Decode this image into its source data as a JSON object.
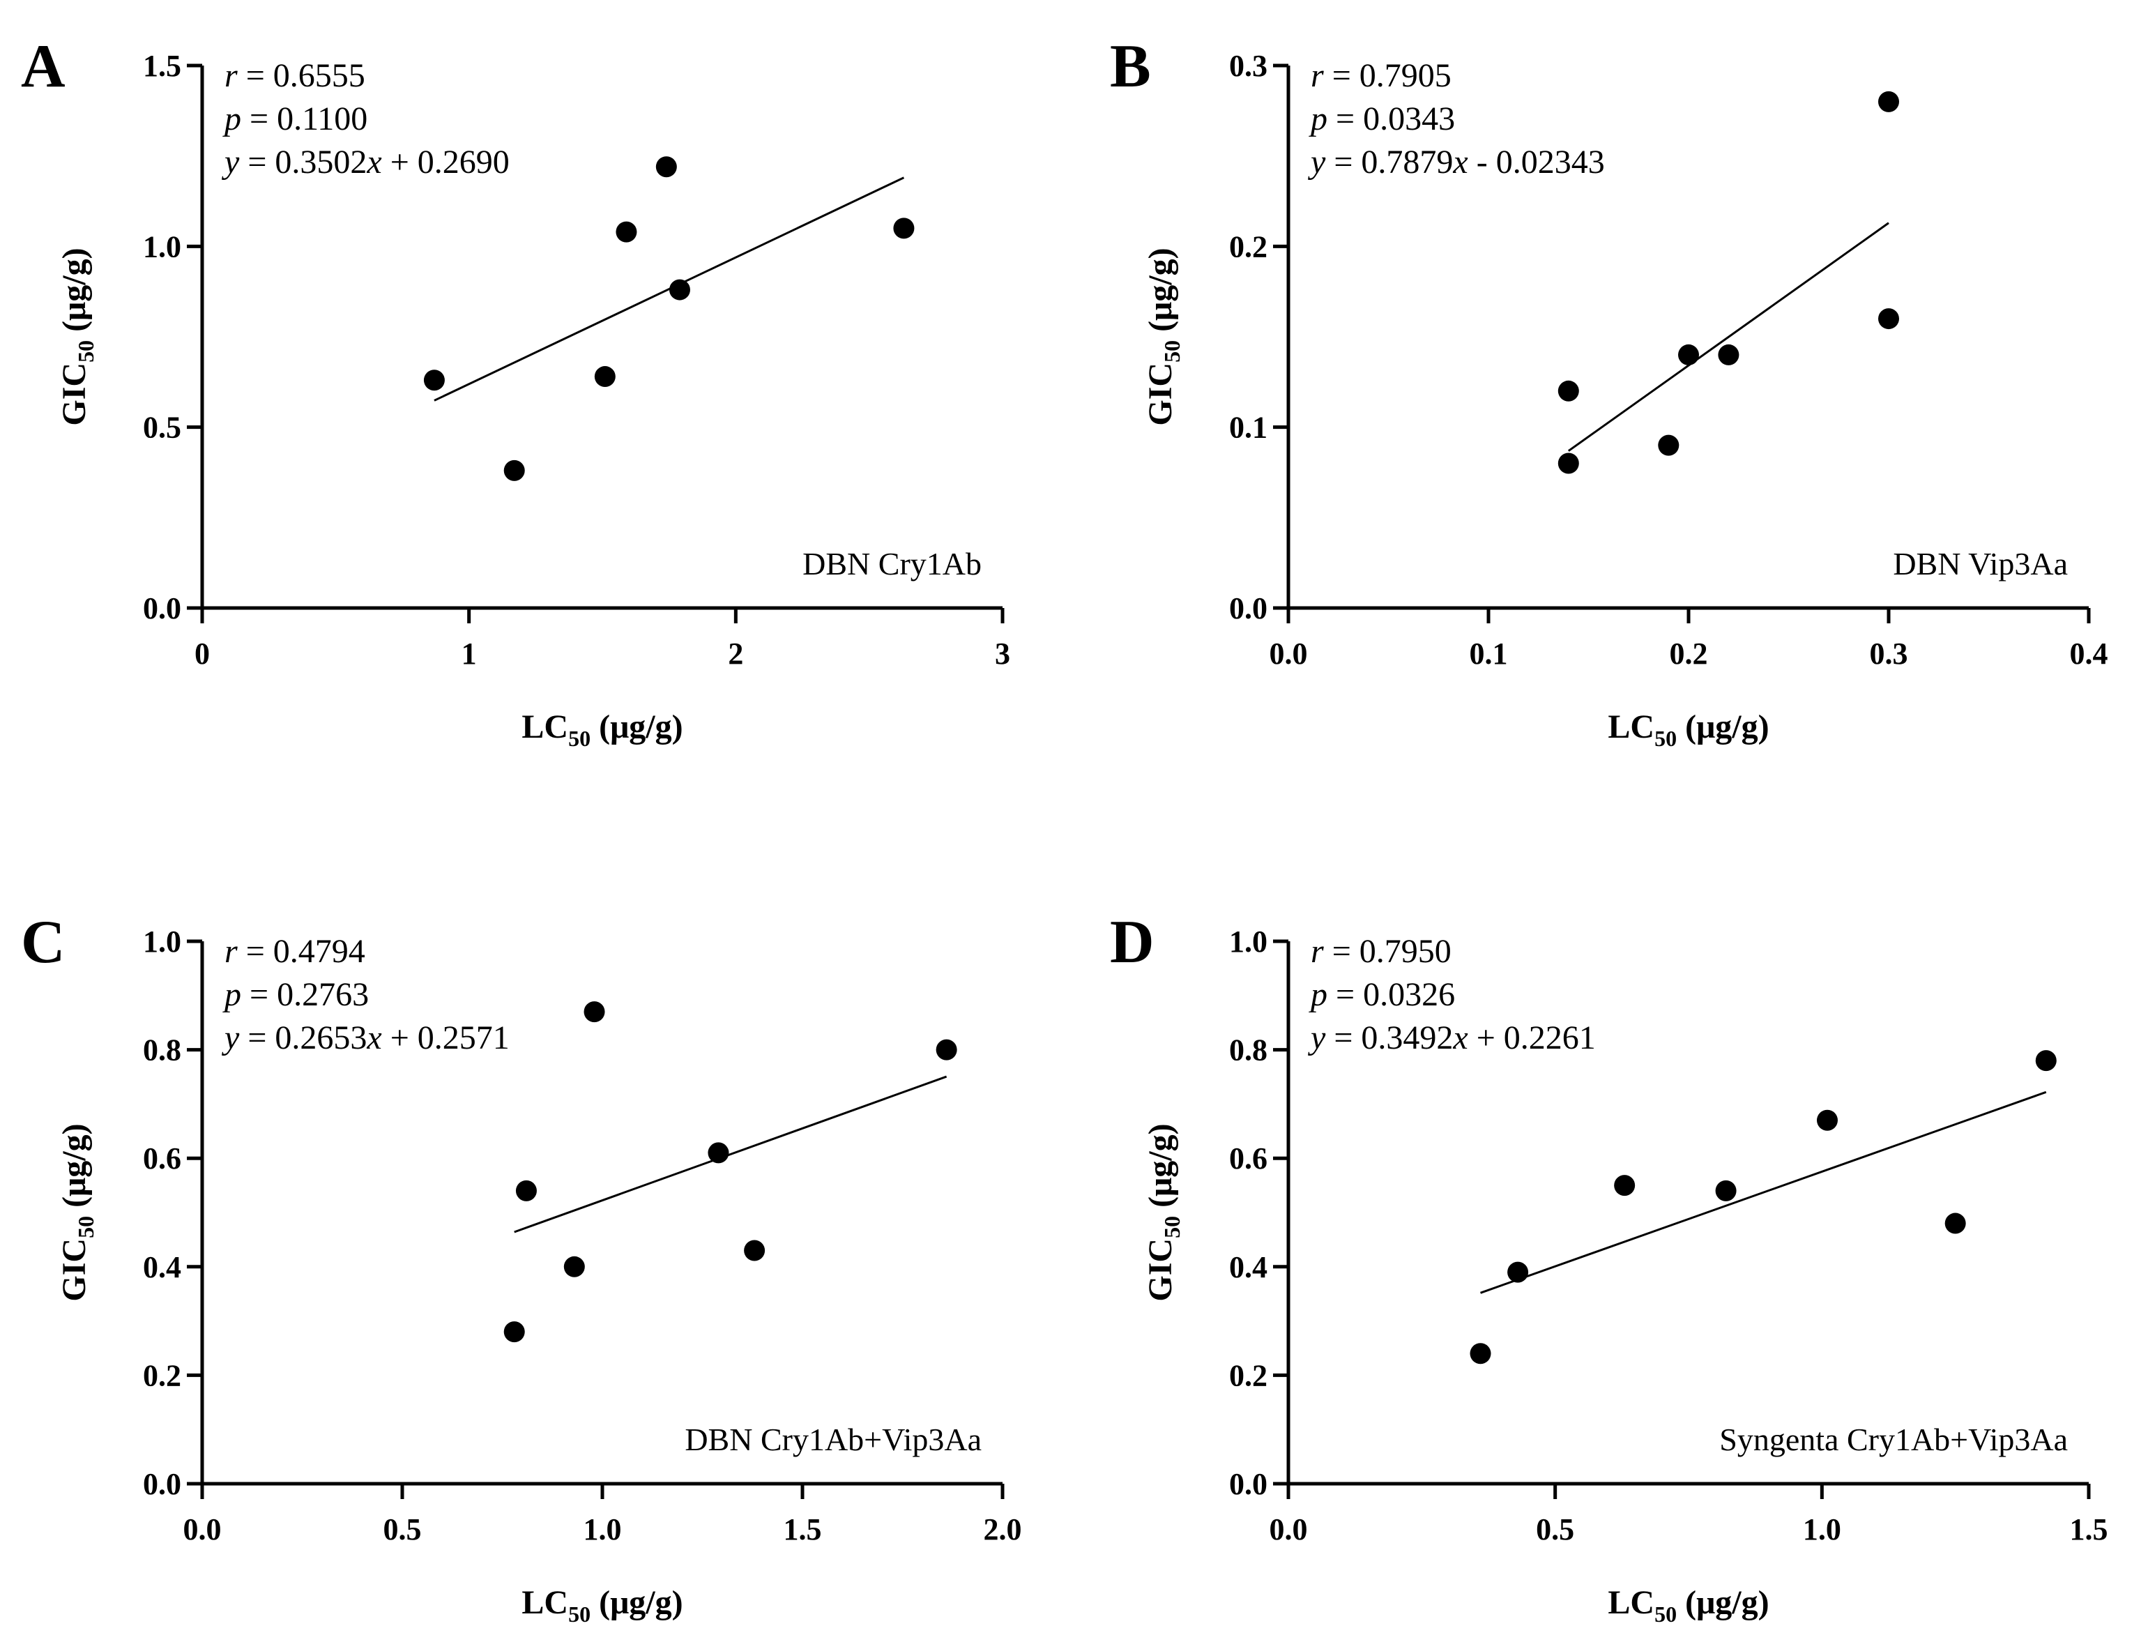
{
  "chart_data": [
    {
      "panel": "A",
      "type": "scatter",
      "caption": "DBN Cry1Ab",
      "xlabel": "LC",
      "xlabel_sub": "50",
      "xlabel_unit": " (μg/g)",
      "ylabel": "GIC",
      "ylabel_sub": "50",
      "ylabel_unit": " (μg/g)",
      "xlim": [
        0,
        3
      ],
      "ylim": [
        0,
        1.5
      ],
      "xticks": [
        "0",
        "1",
        "2",
        "3"
      ],
      "yticks": [
        "0.0",
        "0.5",
        "1.0",
        "1.5"
      ],
      "points": [
        [
          0.87,
          0.63
        ],
        [
          1.17,
          0.38
        ],
        [
          1.51,
          0.64
        ],
        [
          1.59,
          1.04
        ],
        [
          1.74,
          1.22
        ],
        [
          1.79,
          0.88
        ],
        [
          2.63,
          1.05
        ]
      ],
      "fit": {
        "slope": 0.3502,
        "intercept": 0.269,
        "x_range": [
          0.87,
          2.63
        ]
      },
      "stats": {
        "r_var": "r",
        "r_text": " = 0.6555",
        "p_var": "p",
        "p_text": " = 0.1100",
        "eq_y": "y",
        "eq_mid": " = 0.3502",
        "eq_x": "x",
        "eq_end": " + 0.2690"
      }
    },
    {
      "panel": "B",
      "type": "scatter",
      "caption": "DBN Vip3Aa",
      "xlabel": "LC",
      "xlabel_sub": "50",
      "xlabel_unit": " (μg/g)",
      "ylabel": "GIC",
      "ylabel_sub": "50",
      "ylabel_unit": " (μg/g)",
      "xlim": [
        0,
        0.4
      ],
      "ylim": [
        0,
        0.3
      ],
      "xticks": [
        "0.0",
        "0.1",
        "0.2",
        "0.3",
        "0.4"
      ],
      "yticks": [
        "0.0",
        "0.1",
        "0.2",
        "0.3"
      ],
      "points": [
        [
          0.14,
          0.12
        ],
        [
          0.14,
          0.08
        ],
        [
          0.19,
          0.09
        ],
        [
          0.2,
          0.14
        ],
        [
          0.22,
          0.14
        ],
        [
          0.3,
          0.28
        ],
        [
          0.3,
          0.16
        ]
      ],
      "fit": {
        "slope": 0.7879,
        "intercept": -0.02343,
        "x_range": [
          0.14,
          0.3
        ]
      },
      "stats": {
        "r_var": "r",
        "r_text": " = 0.7905",
        "p_var": "p",
        "p_text": " = 0.0343",
        "eq_y": "y",
        "eq_mid": " = 0.7879",
        "eq_x": "x",
        "eq_end": " - 0.02343"
      }
    },
    {
      "panel": "C",
      "type": "scatter",
      "caption": "DBN Cry1Ab+Vip3Aa",
      "xlabel": "LC",
      "xlabel_sub": "50",
      "xlabel_unit": " (μg/g)",
      "ylabel": "GIC",
      "ylabel_sub": "50",
      "ylabel_unit": " (μg/g)",
      "xlim": [
        0,
        2.0
      ],
      "ylim": [
        0,
        1.0
      ],
      "xticks": [
        "0.0",
        "0.5",
        "1.0",
        "1.5",
        "2.0"
      ],
      "yticks": [
        "0.0",
        "0.2",
        "0.4",
        "0.6",
        "0.8",
        "1.0"
      ],
      "points": [
        [
          0.78,
          0.28
        ],
        [
          0.81,
          0.54
        ],
        [
          0.93,
          0.4
        ],
        [
          0.98,
          0.87
        ],
        [
          1.29,
          0.61
        ],
        [
          1.38,
          0.43
        ],
        [
          1.86,
          0.8
        ]
      ],
      "fit": {
        "slope": 0.2653,
        "intercept": 0.2571,
        "x_range": [
          0.78,
          1.86
        ]
      },
      "stats": {
        "r_var": "r",
        "r_text": "  = 0.4794",
        "p_var": "p",
        "p_text": " = 0.2763",
        "eq_y": "y",
        "eq_mid": " = 0.2653",
        "eq_x": "x",
        "eq_end": " + 0.2571"
      }
    },
    {
      "panel": "D",
      "type": "scatter",
      "caption": "Syngenta Cry1Ab+Vip3Aa",
      "xlabel": "LC",
      "xlabel_sub": "50",
      "xlabel_unit": " (μg/g)",
      "ylabel": "GIC",
      "ylabel_sub": "50",
      "ylabel_unit": " (μg/g)",
      "xlim": [
        0,
        1.5
      ],
      "ylim": [
        0,
        1.0
      ],
      "xticks": [
        "0.0",
        "0.5",
        "1.0",
        "1.5"
      ],
      "yticks": [
        "0.0",
        "0.2",
        "0.4",
        "0.6",
        "0.8",
        "1.0"
      ],
      "points": [
        [
          0.36,
          0.24
        ],
        [
          0.43,
          0.39
        ],
        [
          0.63,
          0.55
        ],
        [
          0.82,
          0.54
        ],
        [
          1.01,
          0.67
        ],
        [
          1.25,
          0.48
        ],
        [
          1.42,
          0.78
        ]
      ],
      "fit": {
        "slope": 0.3492,
        "intercept": 0.2261,
        "x_range": [
          0.36,
          1.42
        ]
      },
      "stats": {
        "r_var": "r",
        "r_text": " = 0.7950",
        "p_var": "p",
        "p_text": " = 0.0326",
        "eq_y": "y",
        "eq_mid": " = 0.3492",
        "eq_x": "x",
        "eq_end": " + 0.2261"
      }
    }
  ]
}
